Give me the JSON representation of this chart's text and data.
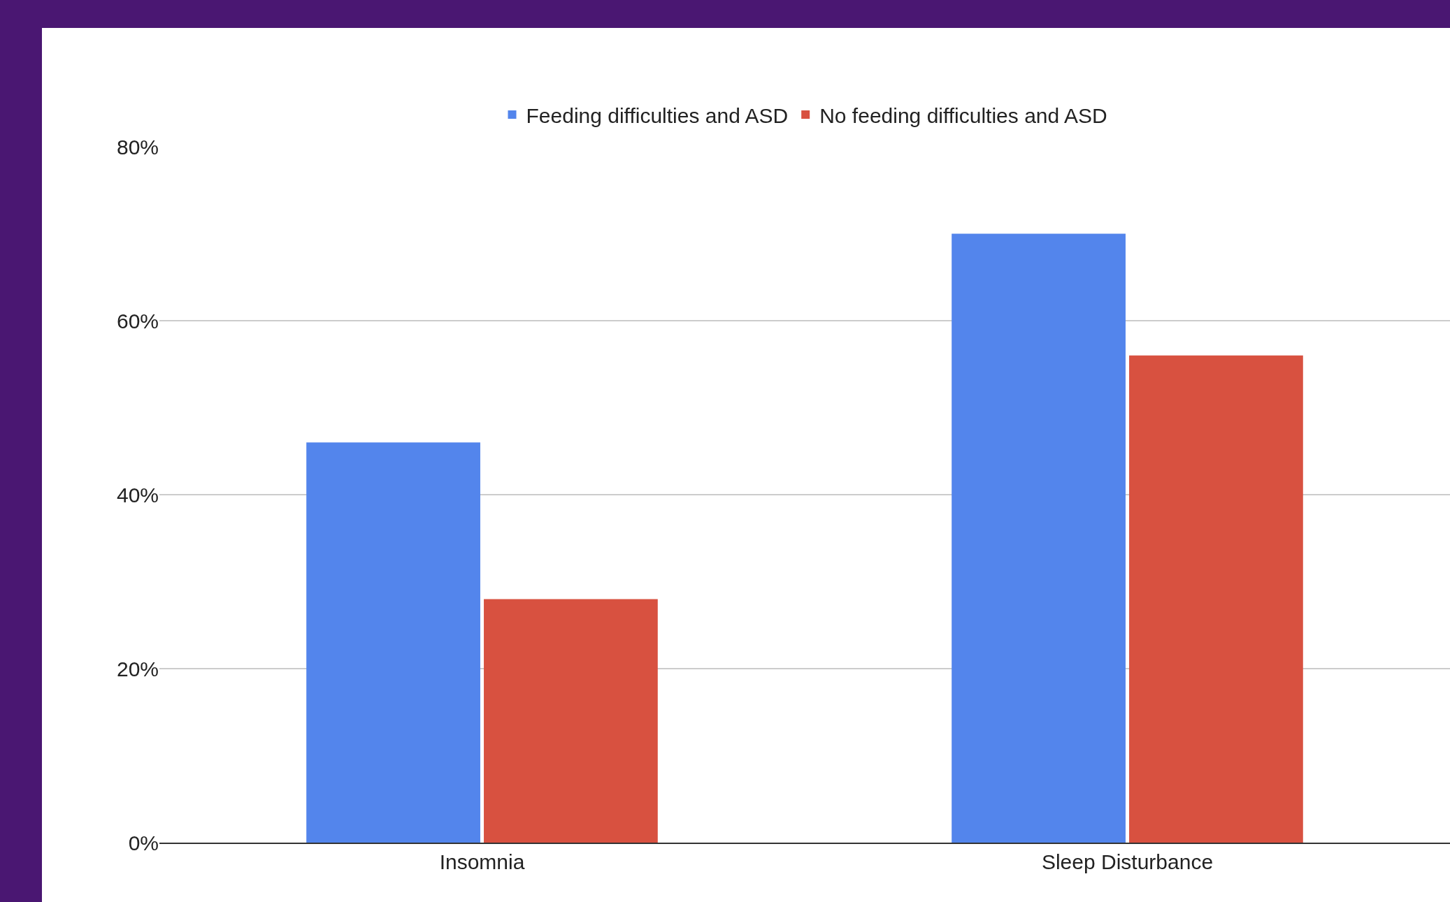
{
  "chart_data": {
    "type": "bar",
    "categories": [
      "Insomnia",
      "Sleep Disturbance"
    ],
    "series": [
      {
        "name": "Feeding difficulties and ASD",
        "color": "#5385ec",
        "values": [
          46,
          70
        ]
      },
      {
        "name": "No feeding difficulties and ASD",
        "color": "#d85140",
        "values": [
          28,
          56
        ]
      }
    ],
    "ylim": [
      0,
      80
    ],
    "yticks": [
      {
        "value": 0,
        "label": "0%"
      },
      {
        "value": 20,
        "label": "20%"
      },
      {
        "value": 40,
        "label": "40%"
      },
      {
        "value": 60,
        "label": "60%"
      },
      {
        "value": 80,
        "label": "80%"
      }
    ],
    "grid": "y",
    "legend": "top"
  }
}
